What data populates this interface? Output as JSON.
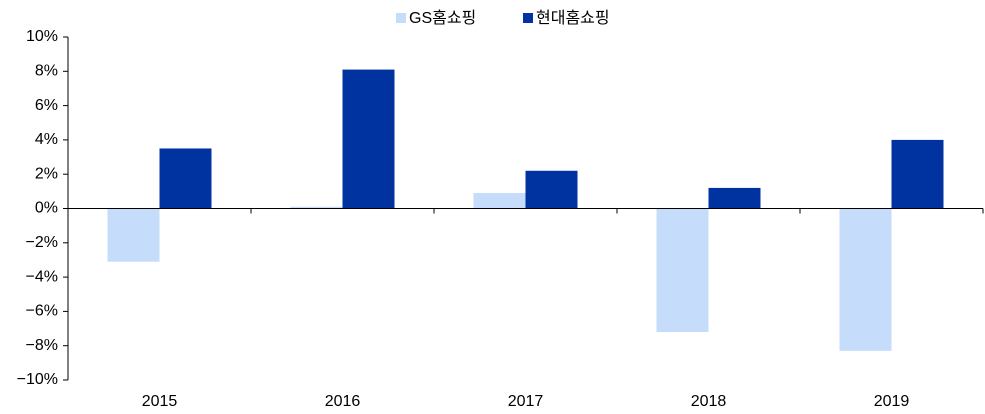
{
  "chart_data": {
    "type": "bar",
    "categories": [
      "2015",
      "2016",
      "2017",
      "2018",
      "2019"
    ],
    "series": [
      {
        "name": "GS홈쇼핑",
        "color": "#c5dcfa",
        "values": [
          -3.1,
          0.1,
          0.9,
          -7.2,
          -8.3
        ]
      },
      {
        "name": "현대홈쇼핑",
        "color": "#0033a0",
        "values": [
          3.5,
          8.1,
          2.2,
          1.2,
          4.0
        ]
      }
    ],
    "ylim": [
      -10,
      10
    ],
    "yticks": [
      {
        "value": -10,
        "label": "−10%"
      },
      {
        "value": -8,
        "label": "−8%"
      },
      {
        "value": -6,
        "label": "−6%"
      },
      {
        "value": -4,
        "label": "−4%"
      },
      {
        "value": -2,
        "label": "−2%"
      },
      {
        "value": 0,
        "label": "0%"
      },
      {
        "value": 2,
        "label": "2%"
      },
      {
        "value": 4,
        "label": "4%"
      },
      {
        "value": 6,
        "label": "6%"
      },
      {
        "value": 8,
        "label": "8%"
      },
      {
        "value": 10,
        "label": "10%"
      }
    ],
    "legend": "top"
  }
}
